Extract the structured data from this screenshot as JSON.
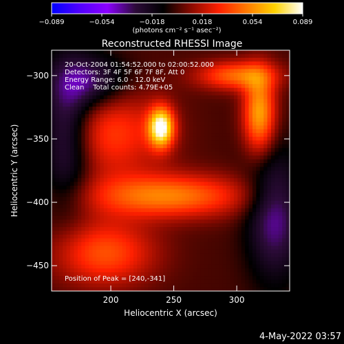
{
  "chart_data": {
    "type": "heatmap",
    "title": "Reconstructed RHESSI Image",
    "xlabel": "Heliocentric X (arcsec)",
    "ylabel": "Heliocentric Y (arcsec)",
    "xlim": [
      153,
      342
    ],
    "ylim": [
      -470,
      -280
    ],
    "xticks": [
      200,
      250,
      300
    ],
    "yticks": [
      -300,
      -350,
      -400,
      -450
    ],
    "colorbar": {
      "label": "(photons cm⁻² s⁻¹ asec⁻²)",
      "range": [
        -0.089,
        0.089
      ],
      "ticks": [
        "−0.089",
        "−0.054",
        "−0.018",
        "0.018",
        "0.054",
        "0.089"
      ]
    },
    "colormap": [
      "#0000ff",
      "#5000ff",
      "#8b00ff",
      "#2d0b3a",
      "#000000",
      "#8a0a00",
      "#ff2000",
      "#ff7a00",
      "#ffd200",
      "#ffffff"
    ],
    "annotation_lines": [
      "20-Oct-2004 01:54:52.000 to 02:00:52.000",
      "Detectors: 3F 4F 5F 6F 7F 8F, Att 0",
      "Energy Range: 6.0 - 12.0 keV",
      "Clean    Total counts: 4.79E+05"
    ],
    "peak_label": "Position of Peak = [240,-341]",
    "peak": {
      "x": 240,
      "y": -341,
      "value": 0.089
    },
    "features": [
      {
        "name": "peak source",
        "x": 240,
        "y": -341,
        "amp": 0.085,
        "sx": 7,
        "sy": 11
      },
      {
        "name": "right arc",
        "x": 318,
        "y": -330,
        "amp": 0.06,
        "sx": 9,
        "sy": 22
      },
      {
        "name": "upper arc",
        "x": 300,
        "y": -300,
        "amp": 0.045,
        "sx": 22,
        "sy": 8
      },
      {
        "name": "lower band",
        "x": 245,
        "y": -395,
        "amp": 0.05,
        "sx": 45,
        "sy": 12
      },
      {
        "name": "central ring",
        "x": 200,
        "y": -345,
        "amp": 0.035,
        "sx": 30,
        "sy": 25
      },
      {
        "name": "lower-left glow",
        "x": 195,
        "y": -440,
        "amp": 0.04,
        "sx": 28,
        "sy": 18
      },
      {
        "name": "left dark band",
        "x": 165,
        "y": -345,
        "amp": -0.04,
        "sx": 14,
        "sy": 40
      },
      {
        "name": "upper-left dark",
        "x": 185,
        "y": -305,
        "amp": -0.035,
        "sx": 20,
        "sy": 15
      },
      {
        "name": "right dark",
        "x": 330,
        "y": -410,
        "amp": -0.04,
        "sx": 15,
        "sy": 35
      }
    ]
  },
  "footer": {
    "timestamp": "4-May-2022 03:57"
  }
}
